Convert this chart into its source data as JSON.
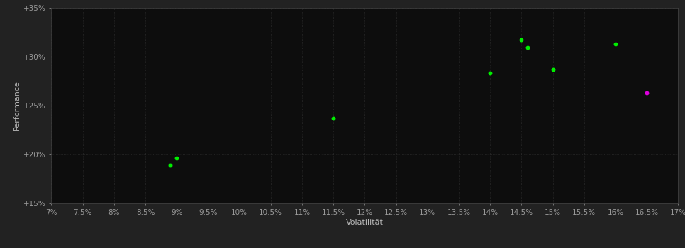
{
  "background_color": "#222222",
  "plot_background_color": "#0d0d0d",
  "grid_color": "#2a2a2a",
  "xlabel": "Volatilität",
  "ylabel": "Performance",
  "xlim": [
    0.07,
    0.17
  ],
  "ylim": [
    0.15,
    0.35
  ],
  "xticks": [
    0.07,
    0.075,
    0.08,
    0.085,
    0.09,
    0.095,
    0.1,
    0.105,
    0.11,
    0.115,
    0.12,
    0.125,
    0.13,
    0.135,
    0.14,
    0.145,
    0.15,
    0.155,
    0.16,
    0.165,
    0.17
  ],
  "xtick_labels": [
    "7%",
    "7.5%",
    "8%",
    "8.5%",
    "9%",
    "9.5%",
    "10%",
    "10.5%",
    "11%",
    "11.5%",
    "12%",
    "12.5%",
    "13%",
    "13.5%",
    "14%",
    "14.5%",
    "15%",
    "15.5%",
    "16%",
    "16.5%",
    "17%"
  ],
  "yticks": [
    0.15,
    0.2,
    0.25,
    0.3,
    0.35
  ],
  "ytick_labels": [
    "+15%",
    "+20%",
    "+25%",
    "+30%",
    "+35%"
  ],
  "green_points": [
    [
      0.09,
      0.196
    ],
    [
      0.089,
      0.189
    ],
    [
      0.115,
      0.237
    ],
    [
      0.14,
      0.283
    ],
    [
      0.145,
      0.317
    ],
    [
      0.146,
      0.309
    ],
    [
      0.15,
      0.287
    ],
    [
      0.16,
      0.313
    ]
  ],
  "magenta_points": [
    [
      0.165,
      0.263
    ]
  ],
  "green_color": "#00ee00",
  "magenta_color": "#dd00dd",
  "dot_size": 18,
  "font_color": "#bbbbbb",
  "tick_color": "#999999",
  "xlabel_fontsize": 8,
  "ylabel_fontsize": 8,
  "tick_fontsize": 7.5,
  "grid_linestyle": "dotted"
}
